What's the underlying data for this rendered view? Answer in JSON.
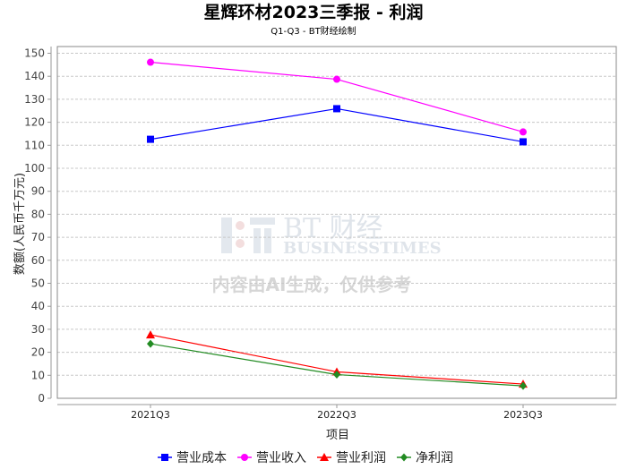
{
  "header": {
    "title": "星辉环材2023三季报 - 利润",
    "subtitle": "Q1-Q3 - BT财经绘制"
  },
  "watermark": {
    "brand_cn": "BT 财经",
    "brand_en": "BUSINESSTIMES",
    "notice": "内容由AI生成，仅供参考"
  },
  "chart_data": {
    "type": "line",
    "title": "星辉环材2023三季报 - 利润",
    "subtitle": "Q1-Q3 - BT财经绘制",
    "xlabel": "项目",
    "ylabel": "数额(人民币千万元)",
    "categories": [
      "2021Q3",
      "2022Q3",
      "2023Q3"
    ],
    "ylim": [
      0,
      150
    ],
    "yticks": [
      0,
      10,
      20,
      30,
      40,
      50,
      60,
      70,
      80,
      90,
      100,
      110,
      120,
      130,
      140,
      150
    ],
    "grid": true,
    "legend_position": "bottom",
    "series": [
      {
        "name": "营业成本",
        "color": "#0000ff",
        "marker": "square",
        "values": [
          112.6,
          125.9,
          111.5
        ]
      },
      {
        "name": "营业收入",
        "color": "#ff00ff",
        "marker": "circle",
        "values": [
          146.1,
          138.7,
          115.8
        ]
      },
      {
        "name": "营业利润",
        "color": "#ff0000",
        "marker": "triangle",
        "values": [
          27.6,
          11.5,
          6.2
        ]
      },
      {
        "name": "净利润",
        "color": "#228b22",
        "marker": "diamond",
        "values": [
          23.7,
          10.3,
          5.4
        ]
      }
    ]
  }
}
